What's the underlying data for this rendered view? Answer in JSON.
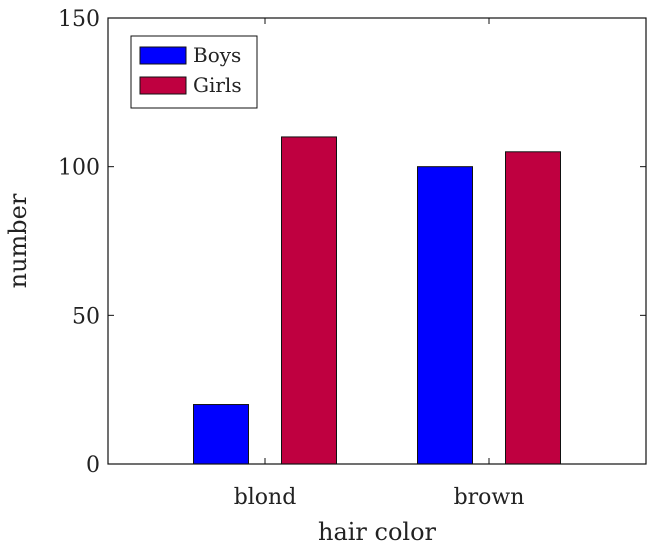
{
  "chart_data": {
    "type": "bar",
    "title": "",
    "xlabel": "hair color",
    "ylabel": "number",
    "categories": [
      "blond",
      "brown"
    ],
    "series": [
      {
        "name": "Boys",
        "values": [
          20,
          100
        ],
        "color": "#0000ff"
      },
      {
        "name": "Girls",
        "values": [
          110,
          105
        ],
        "color": "#bf0040"
      }
    ],
    "ylim": [
      0,
      150
    ],
    "yticks": [
      0,
      50,
      100,
      150
    ],
    "grid": false,
    "legend_position": "top-left"
  }
}
